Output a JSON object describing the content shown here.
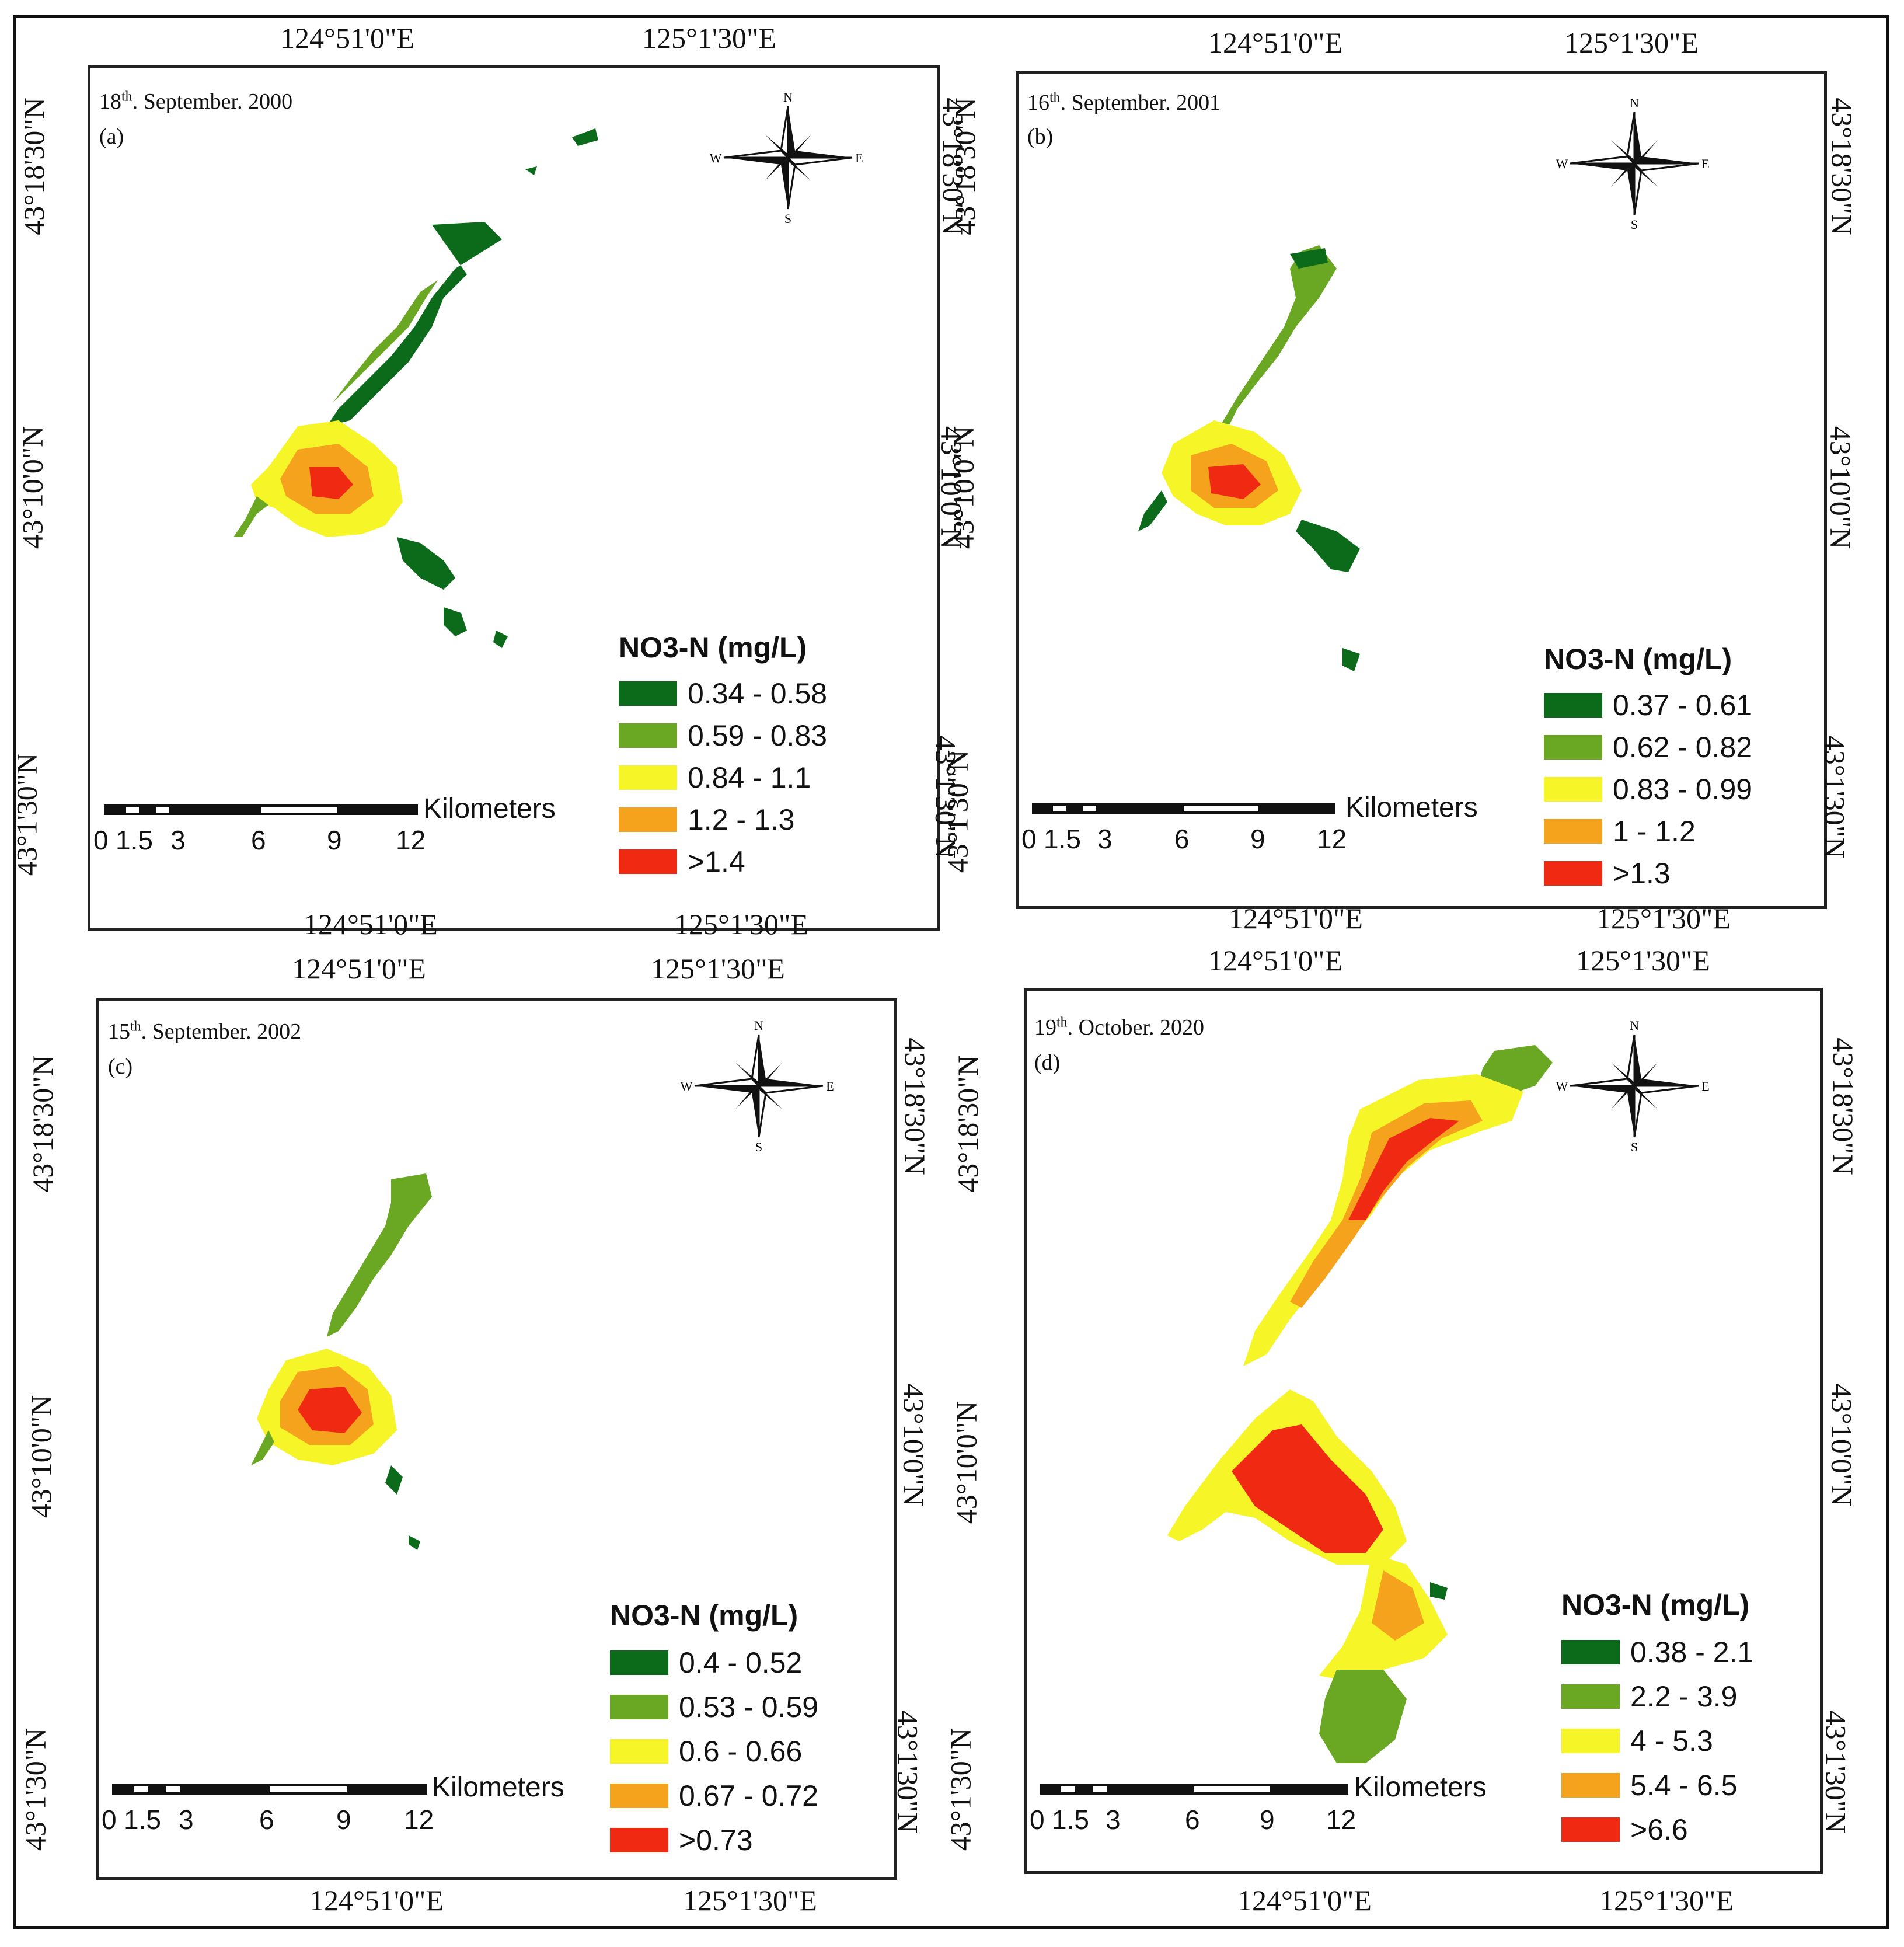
{
  "colors": {
    "class1": "#0b6b1a",
    "class2": "#6aa824",
    "class3": "#f5f528",
    "class4": "#f5a21c",
    "class5": "#f02a12"
  },
  "compass_letters": {
    "n": "N",
    "s": "S",
    "e": "E",
    "w": "W"
  },
  "scale": {
    "unit": "Kilometers",
    "ticks": [
      "0",
      "1.5",
      "3",
      "6",
      "9",
      "12"
    ]
  },
  "coords": {
    "lon_left": "124°51'0\"E",
    "lon_right": "125°1'30\"E",
    "lat_top": "43°18'30\"N",
    "lat_mid": "43°10'0\"N",
    "lat_bottom": "43°1'30\"N"
  },
  "legend_title": "NO3-N (mg/L)",
  "panels": [
    {
      "label": "(a)",
      "date_day": "18",
      "date_sup": "th",
      "date_rest": ". September. 2000",
      "legend": [
        "0.34 - 0.58",
        "0.59 - 0.83",
        "0.84 - 1.1",
        "1.2 - 1.3",
        ">1.4"
      ]
    },
    {
      "label": "(b)",
      "date_day": "16",
      "date_sup": "th",
      "date_rest": ". September. 2001",
      "legend": [
        "0.37 - 0.61",
        "0.62 - 0.82",
        "0.83 - 0.99",
        "1 - 1.2",
        ">1.3"
      ]
    },
    {
      "label": "(c)",
      "date_day": "15",
      "date_sup": "th",
      "date_rest": ". September. 2002",
      "legend": [
        "0.4 - 0.52",
        "0.53 - 0.59",
        "0.6 - 0.66",
        "0.67 - 0.72",
        ">0.73"
      ]
    },
    {
      "label": "(d)",
      "date_day": "19",
      "date_sup": "th",
      "date_rest": ". October. 2020",
      "legend": [
        "0.38 - 2.1",
        "2.2 - 3.9",
        "4 - 5.3",
        "5.4 - 6.5",
        ">6.6"
      ]
    }
  ]
}
